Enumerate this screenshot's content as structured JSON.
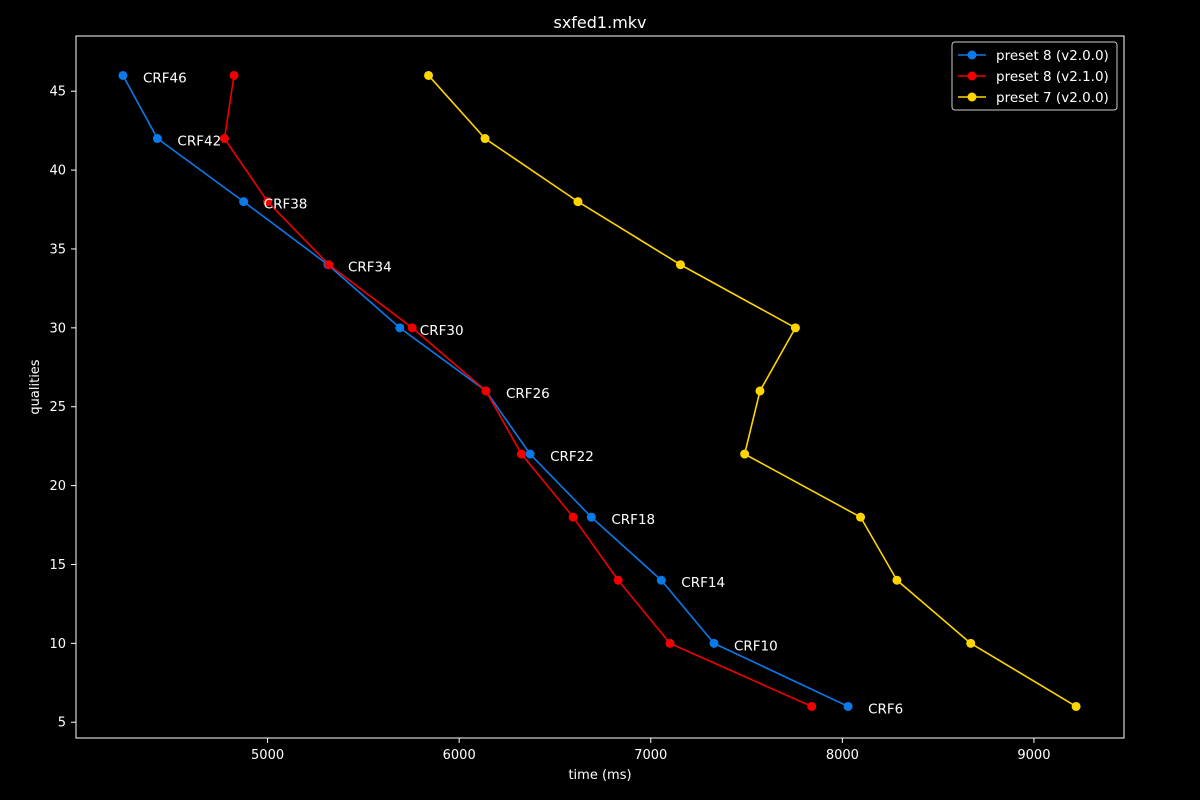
{
  "chart_data": {
    "type": "line",
    "title": "sxfed1.mkv",
    "xlabel": "time (ms)",
    "ylabel": "qualities",
    "xlim": [
      4000,
      9470
    ],
    "ylim": [
      4,
      48.5
    ],
    "xticks": [
      5000,
      6000,
      7000,
      8000,
      9000
    ],
    "yticks": [
      5,
      10,
      15,
      20,
      25,
      30,
      35,
      40,
      45
    ],
    "grid": false,
    "legend_position": "top-right",
    "background": "#000000",
    "foreground": "#ffffff",
    "series": [
      {
        "name": "preset 8 (v2.0.0)",
        "color": "#0a7aeb",
        "points": [
          {
            "x": 4245,
            "y": 46
          },
          {
            "x": 4425,
            "y": 42
          },
          {
            "x": 4875,
            "y": 38
          },
          {
            "x": 5315,
            "y": 34
          },
          {
            "x": 5690,
            "y": 30
          },
          {
            "x": 6140,
            "y": 26
          },
          {
            "x": 6370,
            "y": 22
          },
          {
            "x": 6690,
            "y": 18
          },
          {
            "x": 7055,
            "y": 14
          },
          {
            "x": 7330,
            "y": 10
          },
          {
            "x": 8030,
            "y": 6
          }
        ]
      },
      {
        "name": "preset 8 (v2.1.0)",
        "color": "#f20000",
        "points": [
          {
            "x": 4825,
            "y": 46
          },
          {
            "x": 4775,
            "y": 42
          },
          {
            "x": 5000,
            "y": 38
          },
          {
            "x": 5320,
            "y": 34
          },
          {
            "x": 5755,
            "y": 30
          },
          {
            "x": 6140,
            "y": 26
          },
          {
            "x": 6325,
            "y": 22
          },
          {
            "x": 6595,
            "y": 18
          },
          {
            "x": 6830,
            "y": 14
          },
          {
            "x": 7100,
            "y": 10
          },
          {
            "x": 7840,
            "y": 6
          }
        ]
      },
      {
        "name": "preset 7 (v2.0.0)",
        "color": "#ffd500",
        "points": [
          {
            "x": 5840,
            "y": 46
          },
          {
            "x": 6135,
            "y": 42
          },
          {
            "x": 6620,
            "y": 38
          },
          {
            "x": 7155,
            "y": 34
          },
          {
            "x": 7755,
            "y": 30
          },
          {
            "x": 7570,
            "y": 26
          },
          {
            "x": 7490,
            "y": 22
          },
          {
            "x": 8095,
            "y": 18
          },
          {
            "x": 8285,
            "y": 14
          },
          {
            "x": 8670,
            "y": 10
          },
          {
            "x": 9220,
            "y": 6
          }
        ]
      }
    ],
    "annotations": [
      {
        "text": "CRF46",
        "x": 4245,
        "y": 46
      },
      {
        "text": "CRF42",
        "x": 4425,
        "y": 42
      },
      {
        "text": "CRF38",
        "x": 4875,
        "y": 38
      },
      {
        "text": "CRF34",
        "x": 5315,
        "y": 34
      },
      {
        "text": "CRF30",
        "x": 5690,
        "y": 30
      },
      {
        "text": "CRF26",
        "x": 6140,
        "y": 26
      },
      {
        "text": "CRF22",
        "x": 6370,
        "y": 22
      },
      {
        "text": "CRF18",
        "x": 6690,
        "y": 18
      },
      {
        "text": "CRF14",
        "x": 7055,
        "y": 14
      },
      {
        "text": "CRF10",
        "x": 7330,
        "y": 10
      },
      {
        "text": "CRF6",
        "x": 8030,
        "y": 6
      }
    ]
  }
}
